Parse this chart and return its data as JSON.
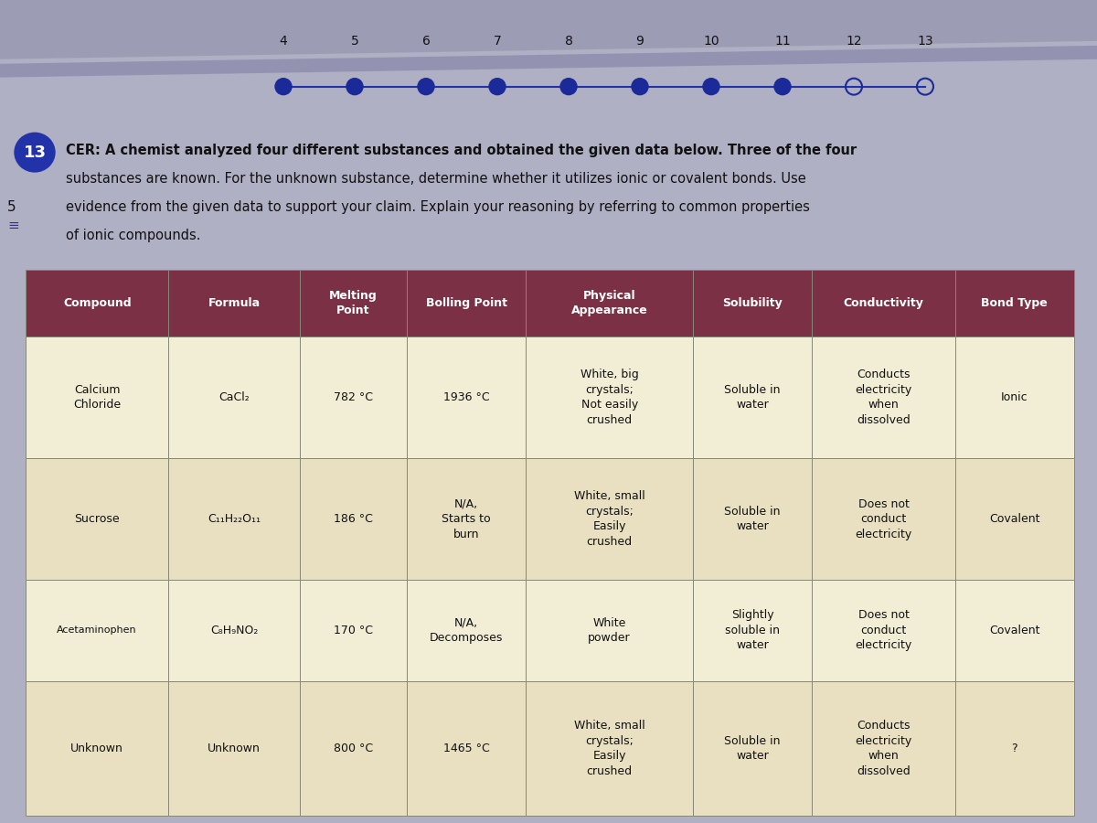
{
  "title_number": "13",
  "side_number": "5",
  "prompt_text_line1": "CER: A chemist analyzed four different substances and obtained the given data below. Three of the four",
  "prompt_text_line2": "substances are known. For the unknown substance, determine whether it utilizes ionic or covalent bonds. Use",
  "prompt_text_line3": "evidence from the given data to support your claim. Explain your reasoning by referring to common properties",
  "prompt_text_line4": "of ionic compounds.",
  "nav_numbers": [
    "4",
    "5",
    "6",
    "7",
    "8",
    "9",
    "10",
    "11",
    "12",
    "13"
  ],
  "nav_filled": [
    true,
    true,
    true,
    true,
    true,
    true,
    true,
    true,
    false,
    false
  ],
  "header_bg": "#7B3045",
  "header_text_color": "#FFFFFF",
  "row_bg_light": "#F2EDD5",
  "row_bg_dark": "#E8E0C0",
  "table_border_color": "#888877",
  "bg_color": "#C8C4B0",
  "nav_bg_top": "#3A3A5A",
  "nav_bg_bottom": "#6A6A8A",
  "nav_stripe_color": "#8888AA",
  "page_bg": "#B0B0C4",
  "circle_color": "#2233AA",
  "text_color": "#111111",
  "col_widths_rel": [
    1.2,
    1.1,
    0.9,
    1.0,
    1.4,
    1.0,
    1.2,
    1.0
  ],
  "header_fontsize": 9,
  "cell_fontsize": 9,
  "columns": [
    "Compound",
    "Formula",
    "Melting\nPoint",
    "Bolling Point",
    "Physical\nAppearance",
    "Solubility",
    "Conductivity",
    "Bond Type"
  ],
  "rows": [
    {
      "compound": "Calcium\nChloride",
      "formula": "CaCl₂",
      "melting": "782 °C",
      "boiling": "1936 °C",
      "appearance": "White, big\ncrystals;\nNot easily\ncrushed",
      "solubility": "Soluble in\nwater",
      "conductivity": "Conducts\nelectricity\nwhen\ndissolved",
      "bond": "Ionic"
    },
    {
      "compound": "Sucrose",
      "formula": "C₁₁H₂₂O₁₁",
      "melting": "186 °C",
      "boiling": "N/A,\nStarts to\nburn",
      "appearance": "White, small\ncrystals;\nEasily\ncrushed",
      "solubility": "Soluble in\nwater",
      "conductivity": "Does not\nconduct\nelectricity",
      "bond": "Covalent"
    },
    {
      "compound": "Acetaminophen",
      "formula": "C₈H₉NO₂",
      "melting": "170 °C",
      "boiling": "N/A,\nDecomposes",
      "appearance": "White\npowder",
      "solubility": "Slightly\nsoluble in\nwater",
      "conductivity": "Does not\nconduct\nelectricity",
      "bond": "Covalent"
    },
    {
      "compound": "Unknown",
      "formula": "Unknown",
      "melting": "800 °C",
      "boiling": "1465 °C",
      "appearance": "White, small\ncrystals;\nEasily\ncrushed",
      "solubility": "Soluble in\nwater",
      "conductivity": "Conducts\nelectricity\nwhen\ndissolved",
      "bond": "?"
    }
  ]
}
